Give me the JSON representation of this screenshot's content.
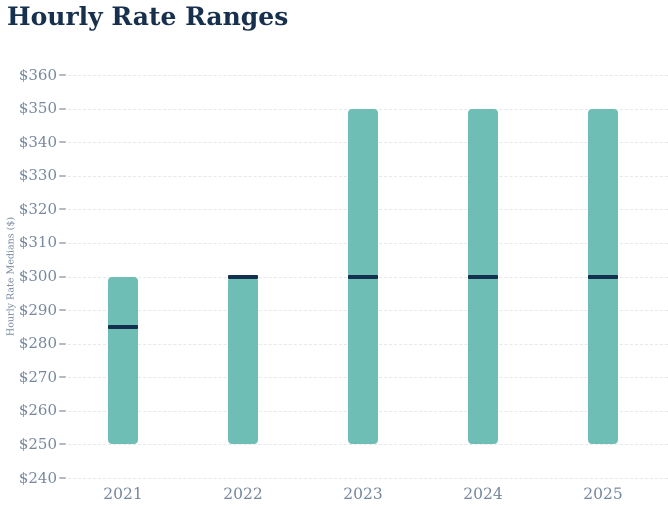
{
  "chart_data": {
    "type": "bar",
    "subtype": "floating-range-bar-with-median",
    "title": "Hourly Rate Ranges",
    "ylabel": "Hourly Rate Medians ($)",
    "xlabel": "",
    "categories": [
      "2021",
      "2022",
      "2023",
      "2024",
      "2025"
    ],
    "series": [
      {
        "name": "Hourly Rate Range",
        "low": [
          250,
          250,
          250,
          250,
          250
        ],
        "high": [
          300,
          300,
          350,
          350,
          350
        ],
        "median": [
          285,
          300,
          300,
          300,
          300
        ]
      }
    ],
    "ylim": [
      240,
      360
    ],
    "ytick_step": 10,
    "ytick_labels": [
      "$240",
      "$250",
      "$260",
      "$270",
      "$280",
      "$290",
      "$300",
      "$310",
      "$320",
      "$330",
      "$340",
      "$350",
      "$360"
    ],
    "grid": "horizontal-dashed",
    "legend": "none",
    "colors": {
      "bar_fill": "#6fbeb6",
      "median_line": "#13304e",
      "title_text": "#16304d",
      "axis_text": "#76879e",
      "gridline": "#e7e8ea",
      "tick_mark": "#b3bac5",
      "background": "#ffffff"
    }
  }
}
